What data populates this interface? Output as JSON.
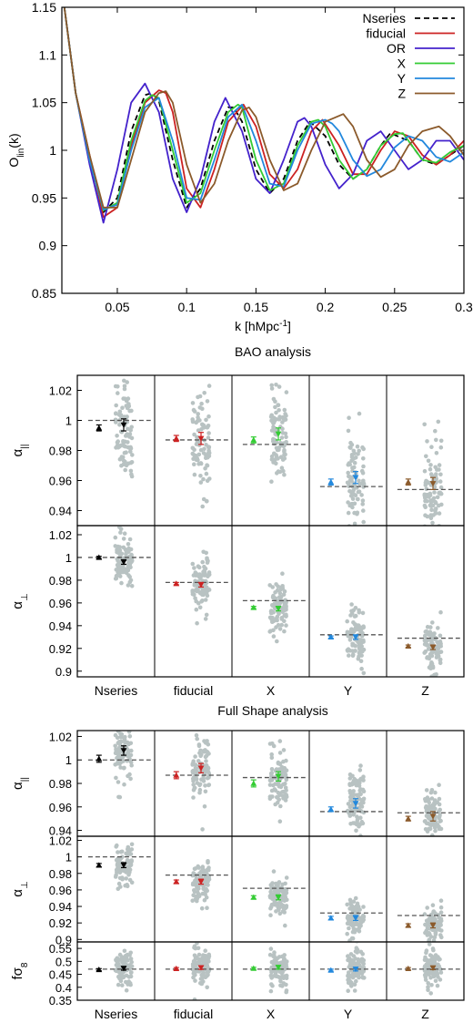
{
  "chart_data": [
    {
      "type": "line",
      "ylabel": "O",
      "ylabel_sub": "lin",
      "ylabel_tail": "(k)",
      "xlabel": "k [hMpc",
      "xlabel_sup": "-1",
      "xlabel_tail": "]",
      "xlim": [
        0.01,
        0.3
      ],
      "ylim": [
        0.85,
        1.15
      ],
      "xticks": [
        "0.05",
        "0.1",
        "0.15",
        "0.2",
        "0.25",
        "0.3"
      ],
      "yticks": [
        "0.85",
        "0.9",
        "0.95",
        "1",
        "1.05",
        "1.1",
        "1.15"
      ],
      "legend_position": "top-right",
      "series": [
        {
          "name": "Nseries",
          "color": "#000000",
          "dash": "dashed",
          "k": [
            0.01,
            0.02,
            0.03,
            0.04,
            0.05,
            0.06,
            0.07,
            0.075,
            0.08,
            0.09,
            0.1,
            0.11,
            0.12,
            0.13,
            0.134,
            0.14,
            0.15,
            0.16,
            0.17,
            0.18,
            0.189,
            0.2,
            0.21,
            0.22,
            0.23,
            0.24,
            0.247,
            0.26,
            0.27,
            0.28,
            0.29,
            0.3
          ],
          "O": [
            1.17,
            1.06,
            0.99,
            0.935,
            0.95,
            1.02,
            1.058,
            1.06,
            1.052,
            0.99,
            0.94,
            0.96,
            1.01,
            1.045,
            1.045,
            1.03,
            0.98,
            0.955,
            0.97,
            1.01,
            1.03,
            1.015,
            0.985,
            0.97,
            0.98,
            1.005,
            1.018,
            1.01,
            0.99,
            0.985,
            0.995,
            1.005
          ]
        },
        {
          "name": "fiducial",
          "color": "#cc2222",
          "dash": "solid",
          "k": [
            0.01,
            0.02,
            0.03,
            0.04,
            0.05,
            0.06,
            0.07,
            0.08,
            0.085,
            0.09,
            0.1,
            0.11,
            0.12,
            0.13,
            0.141,
            0.15,
            0.16,
            0.17,
            0.18,
            0.19,
            0.198,
            0.21,
            0.22,
            0.23,
            0.24,
            0.25,
            0.26,
            0.27,
            0.28,
            0.29,
            0.3
          ],
          "O": [
            1.17,
            1.06,
            0.995,
            0.93,
            0.94,
            1.005,
            1.05,
            1.063,
            1.06,
            1.04,
            0.96,
            0.94,
            0.98,
            1.03,
            1.048,
            1.025,
            0.975,
            0.96,
            0.98,
            1.02,
            1.032,
            1.005,
            0.975,
            0.975,
            1.0,
            1.02,
            1.015,
            0.995,
            0.985,
            0.995,
            1.01
          ]
        },
        {
          "name": "OR",
          "color": "#4422cc",
          "dash": "solid",
          "k": [
            0.01,
            0.02,
            0.03,
            0.04,
            0.05,
            0.06,
            0.07,
            0.08,
            0.09,
            0.1,
            0.11,
            0.12,
            0.128,
            0.14,
            0.15,
            0.16,
            0.17,
            0.18,
            0.185,
            0.19,
            0.2,
            0.21,
            0.22,
            0.23,
            0.24,
            0.25,
            0.26,
            0.27,
            0.28,
            0.29,
            0.3
          ],
          "O": [
            1.17,
            1.06,
            0.985,
            0.924,
            0.98,
            1.05,
            1.07,
            1.04,
            0.97,
            0.935,
            0.97,
            1.03,
            1.055,
            1.02,
            0.97,
            0.955,
            0.99,
            1.03,
            1.034,
            1.025,
            0.985,
            0.96,
            0.975,
            1.01,
            1.02,
            1.0,
            0.98,
            0.99,
            1.01,
            1.01,
            0.99
          ]
        },
        {
          "name": "X",
          "color": "#33cc33",
          "dash": "solid",
          "k": [
            0.01,
            0.02,
            0.03,
            0.04,
            0.05,
            0.06,
            0.07,
            0.075,
            0.08,
            0.09,
            0.1,
            0.11,
            0.12,
            0.13,
            0.137,
            0.14,
            0.15,
            0.16,
            0.17,
            0.18,
            0.19,
            0.195,
            0.2,
            0.21,
            0.22,
            0.23,
            0.24,
            0.25,
            0.256,
            0.26,
            0.27,
            0.28,
            0.29,
            0.3
          ],
          "O": [
            1.17,
            1.06,
            0.99,
            0.937,
            0.945,
            1.01,
            1.052,
            1.058,
            1.055,
            1.0,
            0.945,
            0.955,
            1.0,
            1.04,
            1.048,
            1.045,
            0.99,
            0.958,
            0.965,
            1.005,
            1.03,
            1.032,
            1.025,
            0.99,
            0.97,
            0.98,
            1.005,
            1.017,
            1.018,
            1.01,
            0.99,
            0.987,
            0.998,
            1.005
          ]
        },
        {
          "name": "Y",
          "color": "#2288dd",
          "dash": "solid",
          "k": [
            0.01,
            0.02,
            0.03,
            0.04,
            0.05,
            0.06,
            0.07,
            0.08,
            0.09,
            0.1,
            0.11,
            0.12,
            0.13,
            0.14,
            0.15,
            0.16,
            0.17,
            0.18,
            0.19,
            0.2,
            0.205,
            0.21,
            0.22,
            0.23,
            0.24,
            0.25,
            0.26,
            0.27,
            0.28,
            0.29,
            0.3
          ],
          "O": [
            1.17,
            1.06,
            0.99,
            0.938,
            0.943,
            1.0,
            1.045,
            1.055,
            1.01,
            0.95,
            0.948,
            0.99,
            1.035,
            1.048,
            1.01,
            0.965,
            0.962,
            1.0,
            1.028,
            1.032,
            1.028,
            1.02,
            0.99,
            0.973,
            0.98,
            1.003,
            1.015,
            1.01,
            0.993,
            0.988,
            0.998
          ]
        },
        {
          "name": "Z",
          "color": "#8b5a2b",
          "dash": "solid",
          "k": [
            0.01,
            0.02,
            0.03,
            0.04,
            0.05,
            0.06,
            0.07,
            0.08,
            0.085,
            0.09,
            0.1,
            0.11,
            0.12,
            0.13,
            0.14,
            0.145,
            0.15,
            0.16,
            0.17,
            0.18,
            0.19,
            0.2,
            0.213,
            0.22,
            0.23,
            0.24,
            0.25,
            0.26,
            0.27,
            0.282,
            0.29,
            0.3
          ],
          "O": [
            1.17,
            1.06,
            0.995,
            0.94,
            0.94,
            0.99,
            1.04,
            1.06,
            1.062,
            1.05,
            0.985,
            0.945,
            0.965,
            1.01,
            1.042,
            1.045,
            1.035,
            0.99,
            0.958,
            0.965,
            1.0,
            1.03,
            1.038,
            1.025,
            0.99,
            0.972,
            0.98,
            1.005,
            1.02,
            1.025,
            1.015,
            0.995
          ]
        }
      ]
    },
    {
      "type": "scatter",
      "title": "BAO analysis",
      "categories": [
        "Nseries",
        "fiducial",
        "X",
        "Y",
        "Z"
      ],
      "panels": [
        {
          "ylabel": "α",
          "ylabel_sub": "||",
          "ylim": [
            0.93,
            1.03
          ],
          "yticks": [
            "0.94",
            "0.96",
            "0.98",
            "1",
            "1.02"
          ],
          "reference": [
            1.0,
            0.987,
            0.984,
            0.956,
            0.954
          ],
          "mean": [
            {
              "v": 0.995,
              "e": 0.002
            },
            {
              "v": 0.988,
              "e": 0.002
            },
            {
              "v": 0.987,
              "e": 0.002
            },
            {
              "v": 0.959,
              "e": 0.002
            },
            {
              "v": 0.959,
              "e": 0.002
            }
          ],
          "mocks": [
            {
              "v": 0.997,
              "e": 0.004
            },
            {
              "v": 0.988,
              "e": 0.004
            },
            {
              "v": 0.991,
              "e": 0.004
            },
            {
              "v": 0.962,
              "e": 0.004
            },
            {
              "v": 0.958,
              "e": 0.004
            }
          ],
          "spread": [
            0.016,
            0.018,
            0.015,
            0.017,
            0.016
          ]
        },
        {
          "ylabel": "α",
          "ylabel_sub": "⊥",
          "ylim": [
            0.895,
            1.028
          ],
          "yticks": [
            "0.9",
            "0.92",
            "0.94",
            "0.96",
            "0.98",
            "1",
            "1.02"
          ],
          "reference": [
            1.0,
            0.978,
            0.962,
            0.932,
            0.929
          ],
          "mean": [
            {
              "v": 1.0,
              "e": 0.001
            },
            {
              "v": 0.977,
              "e": 0.001
            },
            {
              "v": 0.956,
              "e": 0.001
            },
            {
              "v": 0.93,
              "e": 0.001
            },
            {
              "v": 0.922,
              "e": 0.001
            }
          ],
          "mocks": [
            {
              "v": 0.996,
              "e": 0.002
            },
            {
              "v": 0.976,
              "e": 0.002
            },
            {
              "v": 0.955,
              "e": 0.002
            },
            {
              "v": 0.93,
              "e": 0.002
            },
            {
              "v": 0.921,
              "e": 0.002
            }
          ],
          "spread": [
            0.011,
            0.012,
            0.011,
            0.012,
            0.012
          ]
        }
      ]
    },
    {
      "type": "scatter",
      "title": "Full Shape analysis",
      "categories": [
        "Nseries",
        "fiducial",
        "X",
        "Y",
        "Z"
      ],
      "panels": [
        {
          "ylabel": "α",
          "ylabel_sub": "||",
          "ylim": [
            0.935,
            1.025
          ],
          "yticks": [
            "0.94",
            "0.96",
            "0.98",
            "1",
            "1.02"
          ],
          "reference": [
            1.0,
            0.987,
            0.985,
            0.956,
            0.955
          ],
          "mean": [
            {
              "v": 1.001,
              "e": 0.003
            },
            {
              "v": 0.987,
              "e": 0.003
            },
            {
              "v": 0.98,
              "e": 0.003
            },
            {
              "v": 0.958,
              "e": 0.002
            },
            {
              "v": 0.95,
              "e": 0.002
            }
          ],
          "mocks": [
            {
              "v": 1.008,
              "e": 0.004
            },
            {
              "v": 0.993,
              "e": 0.004
            },
            {
              "v": 0.986,
              "e": 0.004
            },
            {
              "v": 0.963,
              "e": 0.004
            },
            {
              "v": 0.952,
              "e": 0.004
            }
          ],
          "spread": [
            0.013,
            0.013,
            0.013,
            0.012,
            0.012
          ]
        },
        {
          "ylabel": "α",
          "ylabel_sub": "⊥",
          "ylim": [
            0.897,
            1.025
          ],
          "yticks": [
            "0.9",
            "0.92",
            "0.94",
            "0.96",
            "0.98",
            "1",
            "1.02"
          ],
          "reference": [
            1.0,
            0.978,
            0.962,
            0.932,
            0.929
          ],
          "mean": [
            {
              "v": 0.99,
              "e": 0.002
            },
            {
              "v": 0.97,
              "e": 0.002
            },
            {
              "v": 0.951,
              "e": 0.002
            },
            {
              "v": 0.926,
              "e": 0.002
            },
            {
              "v": 0.917,
              "e": 0.002
            }
          ],
          "mocks": [
            {
              "v": 0.99,
              "e": 0.003
            },
            {
              "v": 0.97,
              "e": 0.003
            },
            {
              "v": 0.951,
              "e": 0.003
            },
            {
              "v": 0.926,
              "e": 0.003
            },
            {
              "v": 0.917,
              "e": 0.003
            }
          ],
          "spread": [
            0.012,
            0.012,
            0.012,
            0.011,
            0.011
          ]
        },
        {
          "ylabel": "fσ",
          "ylabel_sub": "8",
          "ylim": [
            0.35,
            0.575
          ],
          "yticks": [
            "0.35",
            "0.4",
            "0.45",
            "0.5",
            "0.55"
          ],
          "reference": [
            0.47,
            0.47,
            0.47,
            0.47,
            0.47
          ],
          "mean": [
            {
              "v": 0.468,
              "e": 0.004
            },
            {
              "v": 0.472,
              "e": 0.004
            },
            {
              "v": 0.473,
              "e": 0.004
            },
            {
              "v": 0.466,
              "e": 0.004
            },
            {
              "v": 0.472,
              "e": 0.004
            }
          ],
          "mocks": [
            {
              "v": 0.473,
              "e": 0.007
            },
            {
              "v": 0.476,
              "e": 0.007
            },
            {
              "v": 0.477,
              "e": 0.007
            },
            {
              "v": 0.47,
              "e": 0.007
            },
            {
              "v": 0.475,
              "e": 0.007
            }
          ],
          "spread": [
            0.035,
            0.035,
            0.035,
            0.035,
            0.035
          ]
        }
      ]
    }
  ],
  "colors": {
    "Nseries": "#000000",
    "fiducial": "#cc2222",
    "X": "#33cc33",
    "Y": "#2288dd",
    "Z": "#8b5a2b",
    "mock_points": "#b8c2c2",
    "reference_line": "#555555"
  }
}
